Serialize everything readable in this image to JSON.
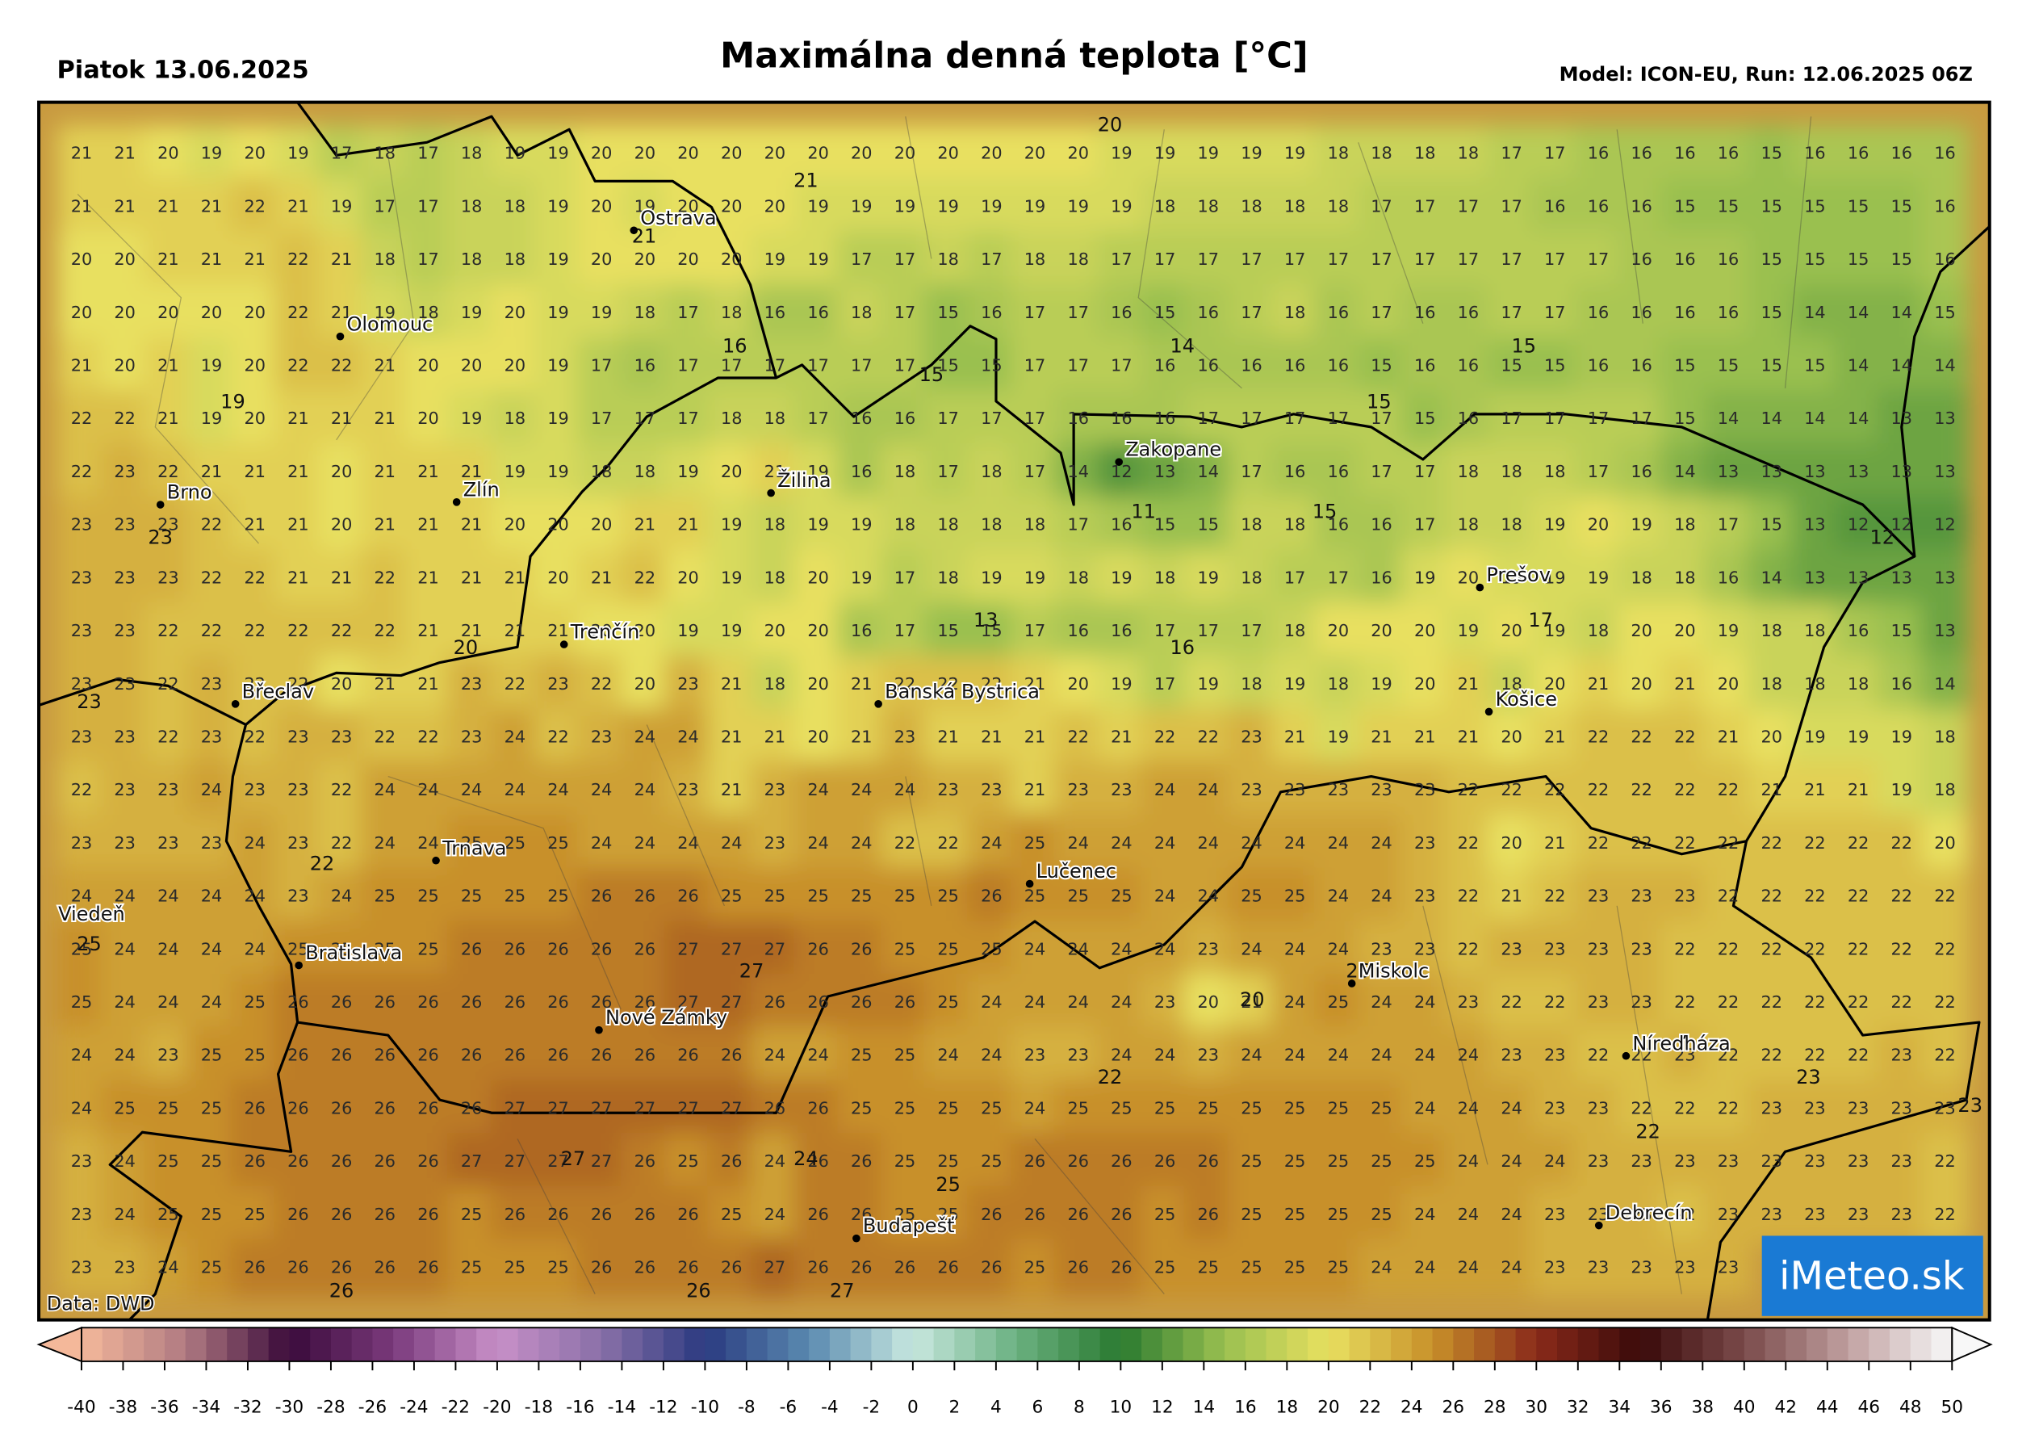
{
  "header": {
    "date": "Piatok 13.06.2025",
    "title": "Maximálna denná teplota [°C]",
    "model": "Model: ICON-EU, Run: 12.06.2025 06Z"
  },
  "source": "Data: DWD",
  "logo": "iMeteo.sk",
  "grid": {
    "rows": [
      [
        21,
        21,
        20,
        19,
        20,
        19,
        17,
        18,
        17,
        18,
        19,
        19,
        20,
        20,
        20,
        20,
        20,
        20,
        20,
        20,
        20,
        20,
        20,
        20,
        19,
        19,
        19,
        19,
        19,
        18,
        18,
        18,
        18,
        17,
        17,
        16,
        16,
        16,
        16,
        15,
        16,
        16,
        16,
        16
      ],
      [
        21,
        21,
        21,
        21,
        22,
        21,
        19,
        17,
        17,
        18,
        18,
        19,
        20,
        19,
        20,
        20,
        20,
        19,
        19,
        19,
        19,
        19,
        19,
        19,
        19,
        18,
        18,
        18,
        18,
        18,
        17,
        17,
        17,
        17,
        16,
        16,
        16,
        15,
        15,
        15,
        15,
        15,
        15,
        16
      ],
      [
        20,
        20,
        21,
        21,
        21,
        22,
        21,
        18,
        17,
        18,
        18,
        19,
        20,
        20,
        20,
        20,
        19,
        19,
        17,
        17,
        18,
        17,
        18,
        18,
        17,
        17,
        17,
        17,
        17,
        17,
        17,
        17,
        17,
        17,
        17,
        17,
        16,
        16,
        16,
        15,
        15,
        15,
        15,
        16
      ],
      [
        20,
        20,
        20,
        20,
        20,
        22,
        21,
        19,
        18,
        19,
        20,
        19,
        19,
        18,
        17,
        18,
        16,
        16,
        18,
        17,
        15,
        16,
        17,
        17,
        16,
        15,
        16,
        17,
        18,
        16,
        17,
        16,
        16,
        17,
        17,
        16,
        16,
        16,
        16,
        15,
        14,
        14,
        14,
        15
      ],
      [
        21,
        20,
        21,
        19,
        20,
        22,
        22,
        21,
        20,
        20,
        20,
        19,
        17,
        16,
        17,
        17,
        17,
        17,
        17,
        17,
        15,
        15,
        17,
        17,
        17,
        16,
        16,
        16,
        16,
        16,
        15,
        16,
        16,
        15,
        15,
        16,
        16,
        15,
        15,
        15,
        15,
        14,
        14,
        14
      ],
      [
        22,
        22,
        21,
        19,
        20,
        21,
        21,
        21,
        20,
        19,
        18,
        19,
        17,
        17,
        17,
        18,
        18,
        17,
        16,
        16,
        17,
        17,
        17,
        16,
        16,
        16,
        17,
        17,
        17,
        17,
        17,
        15,
        16,
        17,
        17,
        17,
        17,
        15,
        14,
        14,
        14,
        14,
        13,
        13
      ],
      [
        22,
        23,
        22,
        21,
        21,
        21,
        20,
        21,
        21,
        21,
        19,
        19,
        18,
        18,
        19,
        20,
        21,
        19,
        16,
        18,
        17,
        18,
        17,
        14,
        12,
        13,
        14,
        17,
        16,
        16,
        17,
        17,
        18,
        18,
        18,
        17,
        16,
        14,
        13,
        13,
        13,
        13,
        13,
        13
      ],
      [
        23,
        23,
        23,
        22,
        21,
        21,
        20,
        21,
        21,
        21,
        20,
        20,
        20,
        21,
        21,
        19,
        18,
        19,
        19,
        18,
        18,
        18,
        18,
        17,
        16,
        15,
        15,
        18,
        18,
        16,
        16,
        17,
        18,
        18,
        19,
        20,
        19,
        18,
        17,
        15,
        13,
        12,
        12,
        12
      ],
      [
        23,
        23,
        23,
        22,
        22,
        21,
        21,
        22,
        21,
        21,
        21,
        20,
        21,
        22,
        20,
        19,
        18,
        20,
        19,
        17,
        18,
        19,
        19,
        18,
        19,
        18,
        19,
        18,
        17,
        17,
        16,
        19,
        20,
        19,
        19,
        19,
        18,
        18,
        16,
        14,
        13,
        13,
        13,
        13
      ],
      [
        23,
        23,
        22,
        22,
        22,
        22,
        22,
        22,
        21,
        21,
        21,
        21,
        20,
        20,
        19,
        19,
        20,
        20,
        16,
        17,
        15,
        15,
        17,
        16,
        16,
        17,
        17,
        17,
        18,
        20,
        20,
        20,
        19,
        20,
        19,
        18,
        20,
        20,
        19,
        18,
        18,
        16,
        15,
        13
      ],
      [
        23,
        23,
        22,
        23,
        22,
        22,
        20,
        21,
        21,
        23,
        22,
        23,
        22,
        20,
        23,
        21,
        18,
        20,
        21,
        22,
        22,
        22,
        21,
        20,
        19,
        17,
        19,
        18,
        19,
        18,
        19,
        20,
        21,
        18,
        20,
        21,
        20,
        21,
        20,
        18,
        18,
        18,
        16,
        14
      ],
      [
        23,
        23,
        22,
        23,
        22,
        23,
        23,
        22,
        22,
        23,
        24,
        22,
        23,
        24,
        24,
        21,
        21,
        20,
        21,
        23,
        21,
        21,
        21,
        22,
        21,
        22,
        22,
        23,
        21,
        19,
        21,
        21,
        21,
        20,
        21,
        22,
        22,
        22,
        21,
        20,
        19,
        19,
        19,
        18
      ],
      [
        22,
        23,
        23,
        24,
        23,
        23,
        22,
        24,
        24,
        24,
        24,
        24,
        24,
        24,
        23,
        21,
        23,
        24,
        24,
        24,
        23,
        23,
        21,
        23,
        23,
        24,
        24,
        23,
        23,
        23,
        23,
        23,
        22,
        22,
        22,
        22,
        22,
        22,
        22,
        21,
        21,
        21,
        19,
        18
      ],
      [
        23,
        23,
        23,
        23,
        24,
        23,
        22,
        24,
        24,
        25,
        25,
        25,
        24,
        24,
        24,
        24,
        23,
        24,
        24,
        22,
        22,
        24,
        25,
        24,
        24,
        24,
        24,
        24,
        24,
        24,
        24,
        23,
        22,
        20,
        21,
        22,
        22,
        22,
        22,
        22,
        22,
        22,
        22,
        20
      ],
      [
        24,
        24,
        24,
        24,
        24,
        23,
        24,
        25,
        25,
        25,
        25,
        25,
        26,
        26,
        26,
        25,
        25,
        25,
        25,
        25,
        25,
        26,
        25,
        25,
        25,
        24,
        24,
        25,
        25,
        24,
        24,
        23,
        22,
        21,
        22,
        23,
        23,
        23,
        22,
        22,
        22,
        22,
        22,
        22
      ],
      [
        25,
        24,
        24,
        24,
        24,
        25,
        25,
        25,
        25,
        26,
        26,
        26,
        26,
        26,
        27,
        27,
        27,
        26,
        26,
        25,
        25,
        25,
        24,
        24,
        24,
        24,
        23,
        24,
        24,
        24,
        23,
        23,
        22,
        23,
        23,
        23,
        23,
        22,
        22,
        22,
        22,
        22,
        22,
        22
      ],
      [
        25,
        24,
        24,
        24,
        25,
        26,
        26,
        26,
        26,
        26,
        26,
        26,
        26,
        26,
        27,
        27,
        26,
        26,
        26,
        26,
        25,
        24,
        24,
        24,
        24,
        23,
        20,
        21,
        24,
        25,
        24,
        24,
        23,
        22,
        22,
        23,
        23,
        22,
        22,
        22,
        22,
        22,
        22,
        22
      ],
      [
        24,
        24,
        23,
        25,
        25,
        26,
        26,
        26,
        26,
        26,
        26,
        26,
        26,
        26,
        26,
        26,
        24,
        24,
        25,
        25,
        24,
        24,
        23,
        23,
        24,
        24,
        23,
        24,
        24,
        24,
        24,
        24,
        24,
        23,
        23,
        22,
        22,
        23,
        22,
        22,
        22,
        22,
        23,
        22
      ],
      [
        24,
        25,
        25,
        25,
        26,
        26,
        26,
        26,
        26,
        26,
        27,
        27,
        27,
        27,
        27,
        27,
        26,
        26,
        25,
        25,
        25,
        25,
        24,
        25,
        25,
        25,
        25,
        25,
        25,
        25,
        25,
        24,
        24,
        24,
        23,
        23,
        22,
        22,
        22,
        23,
        23,
        23,
        23,
        23
      ],
      [
        23,
        24,
        25,
        25,
        26,
        26,
        26,
        26,
        26,
        27,
        27,
        27,
        27,
        26,
        25,
        26,
        24,
        26,
        26,
        25,
        25,
        25,
        26,
        26,
        26,
        26,
        26,
        25,
        25,
        25,
        25,
        25,
        24,
        24,
        24,
        23,
        23,
        23,
        23,
        23,
        23,
        23,
        23,
        22
      ],
      [
        23,
        24,
        25,
        25,
        25,
        26,
        26,
        26,
        26,
        25,
        26,
        26,
        26,
        26,
        26,
        25,
        24,
        26,
        26,
        25,
        25,
        26,
        26,
        26,
        26,
        25,
        26,
        25,
        25,
        25,
        25,
        24,
        24,
        24,
        23,
        23,
        23,
        22,
        23,
        23,
        23,
        23,
        23,
        22
      ],
      [
        23,
        23,
        24,
        25,
        26,
        26,
        26,
        26,
        26,
        25,
        25,
        25,
        26,
        26,
        26,
        26,
        27,
        26,
        26,
        26,
        26,
        26,
        25,
        26,
        26,
        25,
        25,
        25,
        25,
        25,
        24,
        24,
        24,
        24,
        23,
        23,
        23,
        23,
        23
      ]
    ]
  },
  "local_values": [
    20,
    21,
    21,
    16,
    15,
    14,
    15,
    15,
    19,
    11,
    15,
    12,
    13,
    16,
    17,
    20,
    23,
    23,
    22,
    27,
    20,
    25,
    25,
    22,
    23,
    22,
    23,
    27,
    24,
    25,
    26,
    26,
    27
  ],
  "cities": [
    "Ostrava",
    "Olomouc",
    "Brno",
    "Zlín",
    "Žilina",
    "Zakopane",
    "Prešov",
    "Trenčín",
    "Břeclav",
    "Banská Bystrica",
    "Košice",
    "Trnava",
    "Lučenec",
    "Viedeň",
    "Bratislava",
    "Miskolc",
    "Nové Zámky",
    "Níreďháza",
    "Budapešť",
    "Debrecín"
  ],
  "colorbar": {
    "ticks": [
      -40,
      -38,
      -36,
      -34,
      -32,
      -30,
      -28,
      -26,
      -24,
      -22,
      -20,
      -18,
      -16,
      -14,
      -12,
      -10,
      -8,
      -6,
      -4,
      -2,
      0,
      2,
      4,
      6,
      8,
      10,
      12,
      14,
      16,
      18,
      20,
      22,
      24,
      26,
      28,
      30,
      32,
      34,
      36,
      38,
      40,
      42,
      44,
      46,
      48,
      50
    ],
    "colors": [
      "#f4b89a",
      "#b07a82",
      "#3a0a3a",
      "#7a3a7c",
      "#c890c8",
      "#8a70a8",
      "#2a3a80",
      "#5a8ab0",
      "#c8e8e0",
      "#6ab080",
      "#2a7a30",
      "#9ac050",
      "#e8e060",
      "#c8902a",
      "#8a2a1a",
      "#3a0a0a",
      "#7a4a4a",
      "#c0a0a0",
      "#f8f8f8"
    ]
  }
}
